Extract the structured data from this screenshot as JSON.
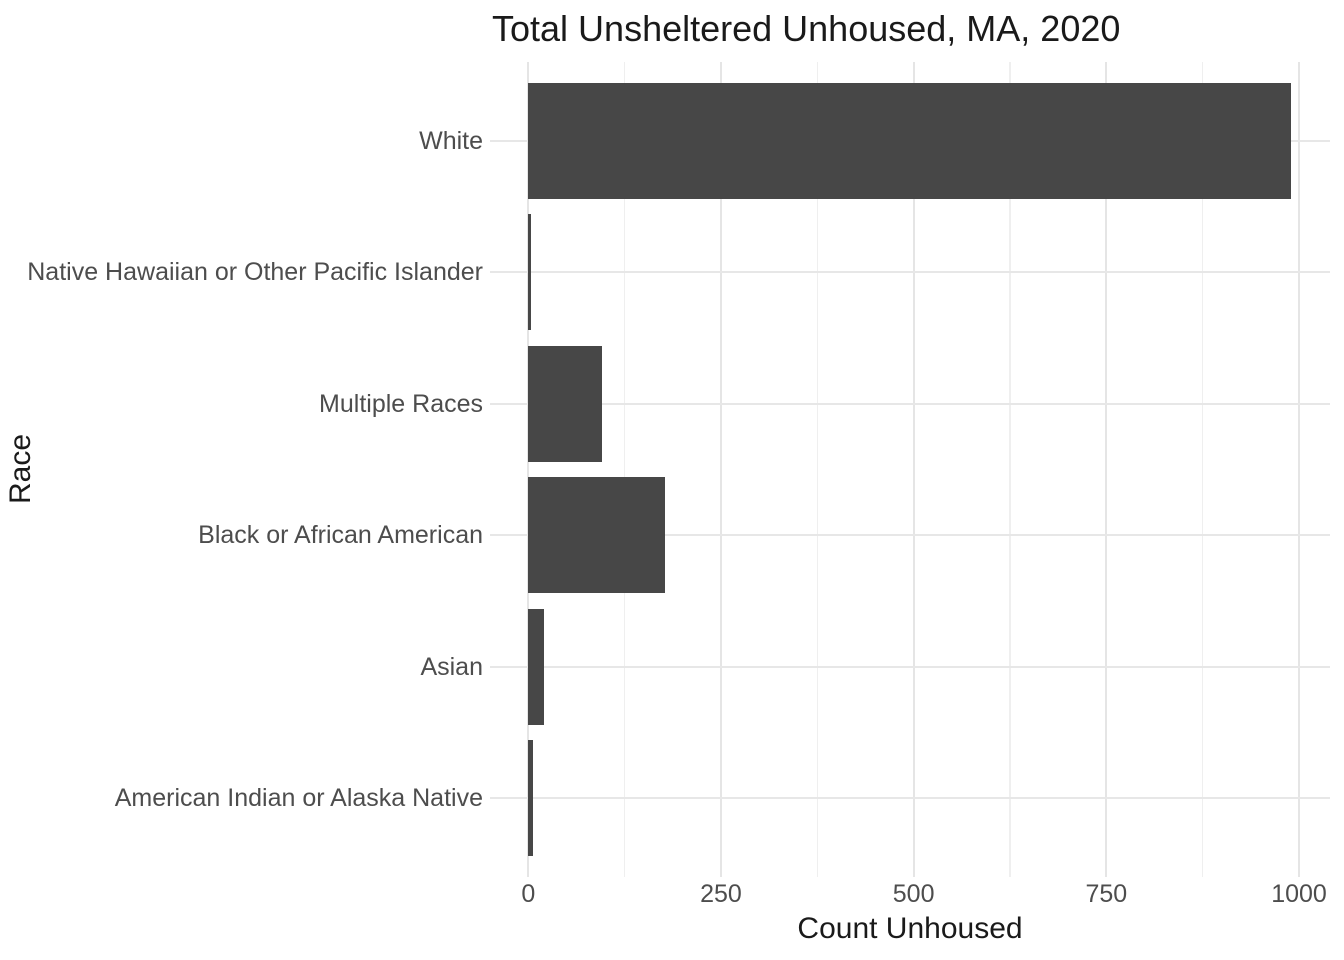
{
  "title": "Total Unsheltered Unhoused, MA, 2020",
  "chart_data": {
    "type": "bar",
    "orientation": "horizontal",
    "title": "Total Unsheltered Unhoused, MA, 2020",
    "xlabel": "Count Unhoused",
    "ylabel": "Race",
    "categories": [
      "White",
      "Native Hawaiian or Other Pacific Islander",
      "Multiple Races",
      "Black or African American",
      "Asian",
      "American Indian or Alaska Native"
    ],
    "values": [
      990,
      4,
      96,
      178,
      21,
      6
    ],
    "xlim": [
      0,
      1000
    ],
    "x_major_ticks": [
      0,
      250,
      500,
      750,
      1000
    ],
    "x_tick_labels": [
      "0",
      "250",
      "500",
      "750",
      "1000"
    ],
    "x_minor_gridlines": [
      125,
      375,
      625,
      875
    ],
    "grid": true,
    "legend": "none",
    "bar_color": "#474747",
    "major_gridline_color": "#e5e5e5",
    "minor_gridline_color": "#efefef",
    "background_color": "#ffffff",
    "axis_text_color": "#4d4d4d",
    "title_color": "#1a1a1a"
  }
}
